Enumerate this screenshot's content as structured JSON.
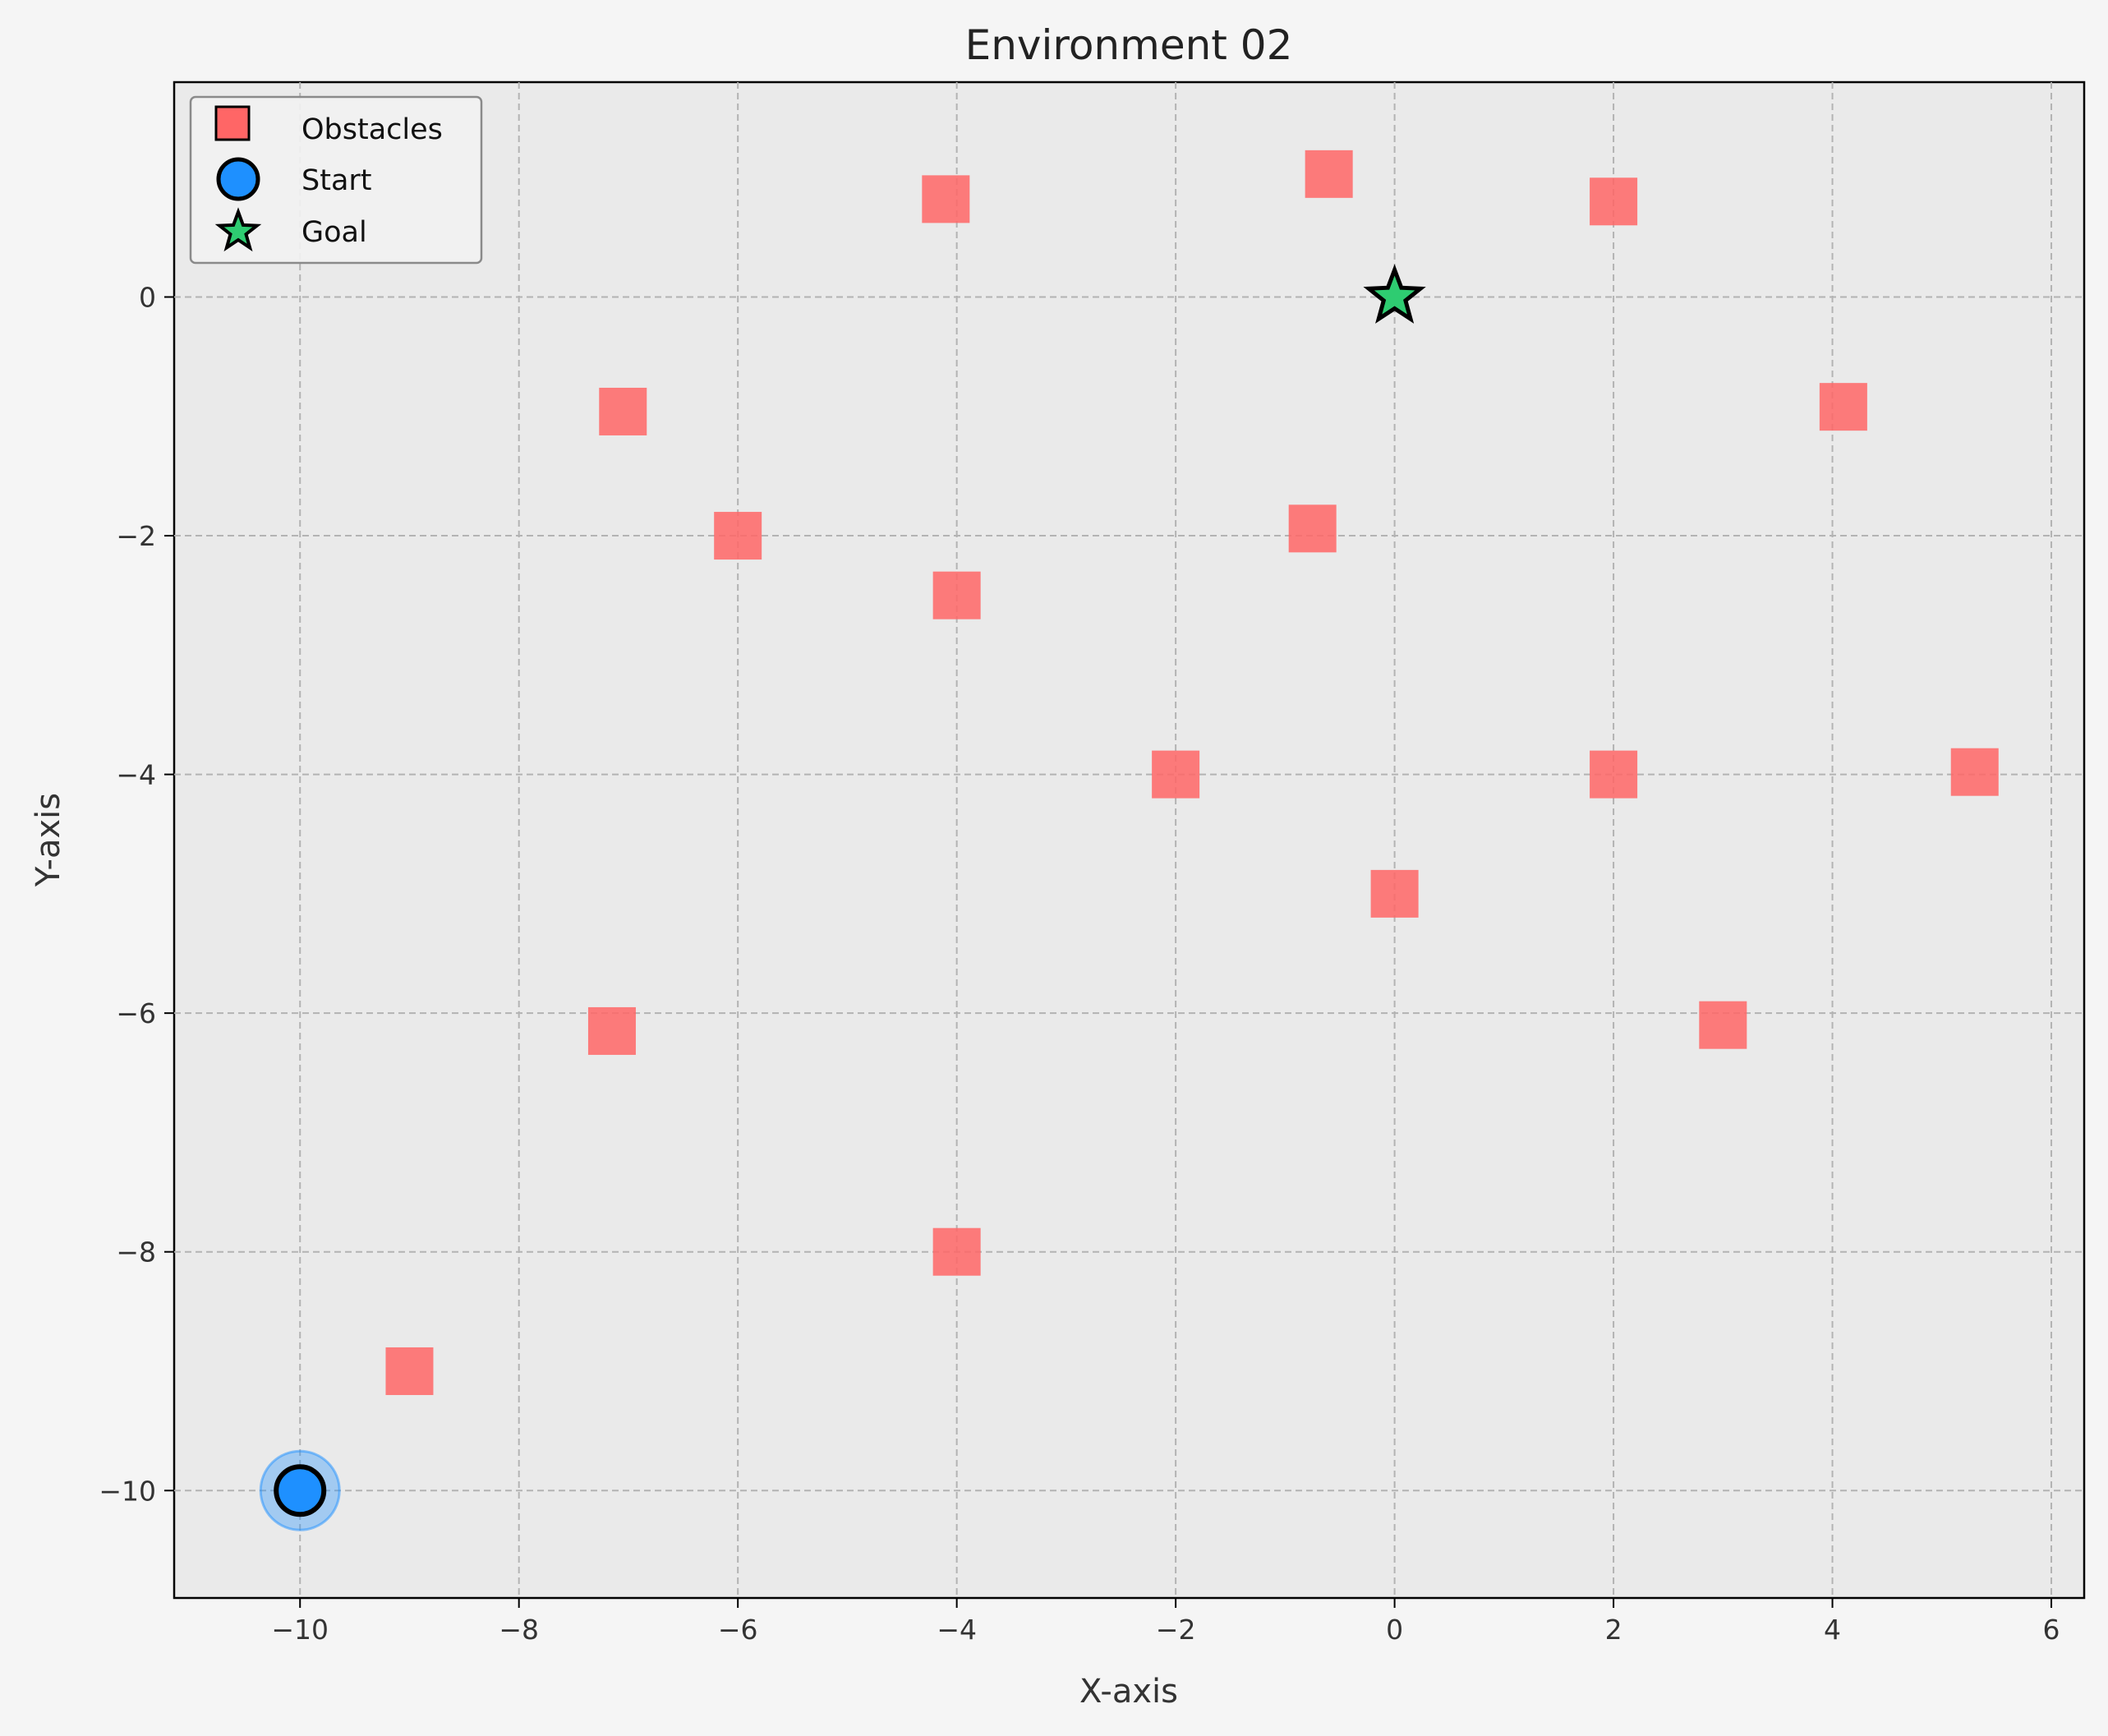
{
  "chart_data": {
    "type": "scatter",
    "title": "Environment 02",
    "xlabel": "X-axis",
    "ylabel": "Y-axis",
    "xlim": [
      -11.15,
      6.3
    ],
    "ylim": [
      -10.9,
      1.8
    ],
    "xticks": [
      -10,
      -8,
      -6,
      -4,
      -2,
      0,
      2,
      4,
      6
    ],
    "yticks": [
      0,
      -2,
      -4,
      -6,
      -8,
      -10
    ],
    "xtick_labels": [
      "−10",
      "−8",
      "−6",
      "−4",
      "−2",
      "0",
      "2",
      "4",
      "6"
    ],
    "ytick_labels": [
      "0",
      "−2",
      "−4",
      "−6",
      "−8",
      "−10"
    ],
    "grid": true,
    "legend_position": "top-left",
    "legend": [
      "Obstacles",
      "Start",
      "Goal"
    ],
    "series": [
      {
        "name": "Obstacles",
        "marker": "square",
        "color": "#ff6666",
        "points": [
          {
            "x": -4.1,
            "y": 0.82
          },
          {
            "x": -0.6,
            "y": 1.03
          },
          {
            "x": 2.0,
            "y": 0.8
          },
          {
            "x": -7.05,
            "y": -0.96
          },
          {
            "x": 4.1,
            "y": -0.92
          },
          {
            "x": -6.0,
            "y": -2.0
          },
          {
            "x": -0.75,
            "y": -1.94
          },
          {
            "x": -4.0,
            "y": -2.5
          },
          {
            "x": -2.0,
            "y": -4.0
          },
          {
            "x": 2.0,
            "y": -4.0
          },
          {
            "x": 5.3,
            "y": -3.98
          },
          {
            "x": 0.0,
            "y": -5.0
          },
          {
            "x": -7.15,
            "y": -6.15
          },
          {
            "x": 3.0,
            "y": -6.1
          },
          {
            "x": -4.0,
            "y": -8.0
          },
          {
            "x": -9.0,
            "y": -9.0
          }
        ]
      },
      {
        "name": "Start",
        "marker": "circle",
        "color": "#1e90ff",
        "points": [
          {
            "x": -10,
            "y": -10
          }
        ]
      },
      {
        "name": "Goal",
        "marker": "star",
        "color": "#2ecc71",
        "points": [
          {
            "x": 0,
            "y": 0
          }
        ]
      }
    ]
  }
}
